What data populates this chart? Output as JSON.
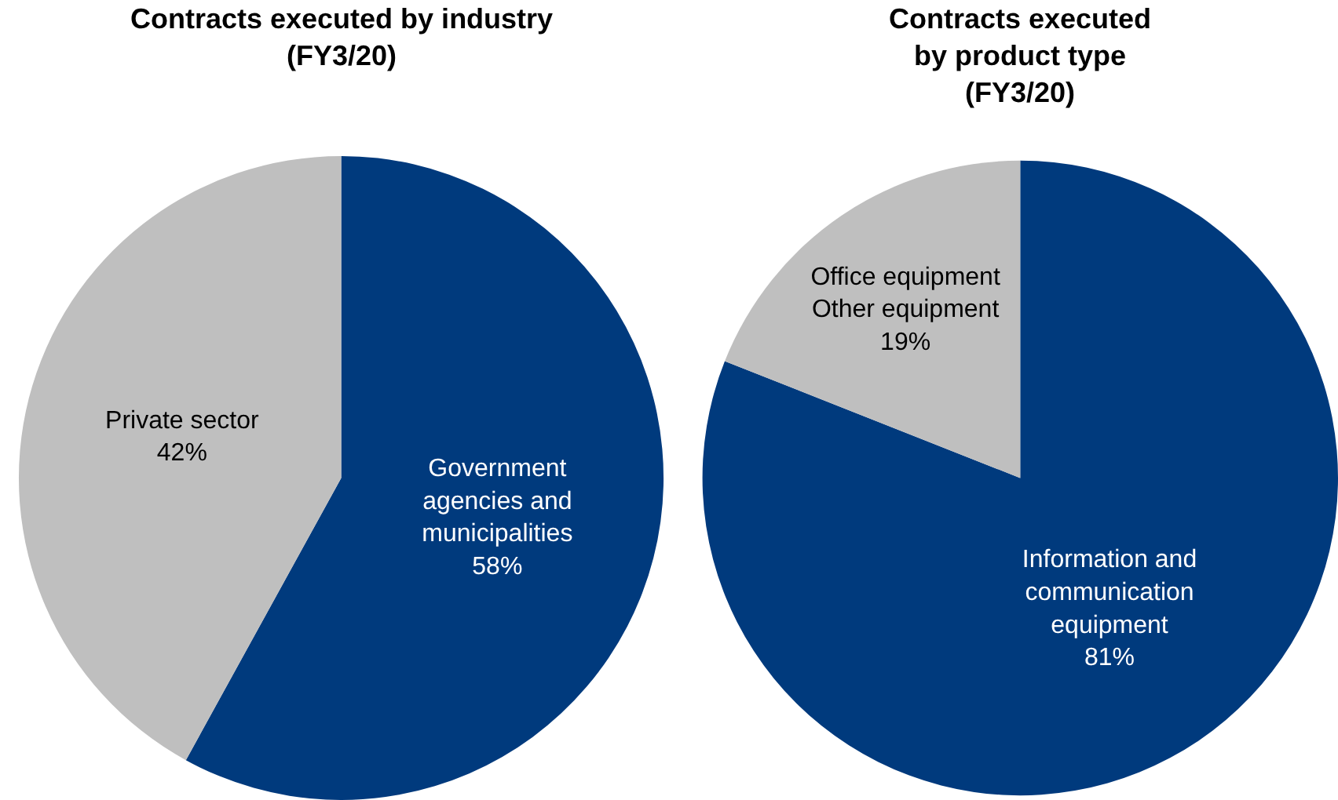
{
  "chart_data": [
    {
      "type": "pie",
      "title": "Contracts executed by industry (FY3/20)",
      "categories": [
        "Government agencies and municipalities",
        "Private sector"
      ],
      "values": [
        58,
        42
      ],
      "value_labels": [
        "58%",
        "42%"
      ],
      "colors": [
        "#003a7d",
        "#bfbfbf"
      ]
    },
    {
      "type": "pie",
      "title": "Contracts executed by product type (FY3/20)",
      "categories": [
        "Information and communication equipment",
        "Office equipment Other equipment"
      ],
      "values": [
        81,
        19
      ],
      "value_labels": [
        "81%",
        "19%"
      ],
      "colors": [
        "#003a7d",
        "#bfbfbf"
      ]
    }
  ]
}
